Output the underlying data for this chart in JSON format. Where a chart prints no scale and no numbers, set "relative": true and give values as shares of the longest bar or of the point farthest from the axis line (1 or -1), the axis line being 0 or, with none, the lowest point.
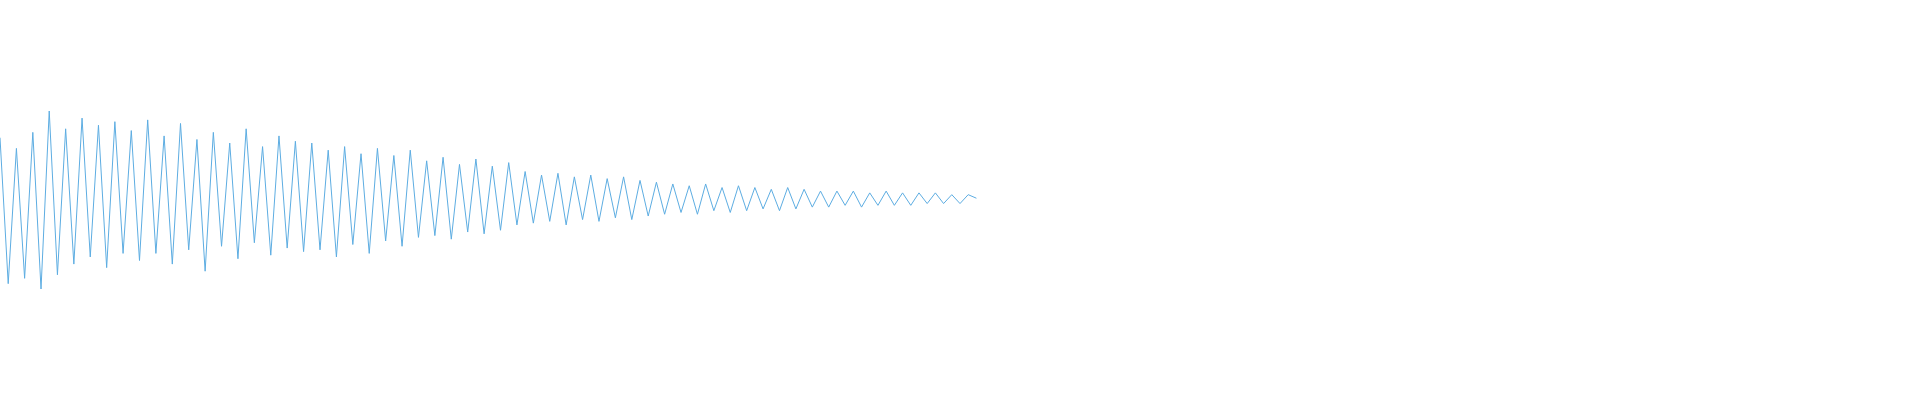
{
  "chart_data": {
    "type": "line",
    "relative": true,
    "categories": [
      null,
      null,
      null,
      null,
      null,
      null,
      null,
      null,
      null,
      null,
      null,
      null,
      null,
      null,
      null,
      null,
      null,
      null,
      null,
      null,
      null,
      null,
      null,
      null,
      null,
      null,
      null,
      null,
      null,
      null,
      null,
      null,
      null,
      null,
      null,
      null,
      null,
      null,
      null,
      null,
      null,
      null,
      null,
      null,
      null,
      null,
      null,
      null,
      null,
      null,
      null,
      null,
      null,
      null,
      null,
      null,
      null,
      null,
      null,
      null,
      null,
      null,
      null,
      null,
      null,
      null,
      null,
      null,
      null,
      null,
      null,
      null,
      null,
      null,
      null,
      null,
      null,
      null,
      null,
      null,
      null,
      null,
      null,
      null,
      null,
      null,
      null,
      null,
      null,
      null,
      null,
      null,
      null,
      null,
      null,
      null,
      null,
      null,
      null,
      null,
      null,
      null,
      null,
      null,
      null,
      null,
      null,
      null,
      null,
      null,
      null,
      null,
      null,
      null,
      null,
      null,
      null,
      null,
      null,
      null,
      null,
      null,
      null,
      null,
      null,
      null,
      null,
      null,
      null,
      null,
      null,
      null,
      null,
      null,
      null,
      null,
      null,
      null,
      null,
      null,
      null,
      null,
      null,
      null,
      null,
      null,
      null,
      null,
      null,
      null,
      null,
      null,
      null,
      null,
      null,
      null,
      null,
      null,
      null,
      null,
      null,
      null,
      null,
      null,
      null,
      null,
      null,
      null,
      null,
      null,
      null,
      null,
      null,
      null,
      null,
      null,
      null,
      null,
      null,
      null,
      null,
      null,
      null,
      null,
      null,
      null,
      null,
      null,
      null,
      null,
      null,
      null,
      null,
      null,
      null,
      null,
      null,
      null,
      null,
      null,
      null,
      null,
      null,
      null,
      null,
      null,
      null,
      null,
      null,
      null,
      null,
      null,
      null,
      null,
      null,
      null,
      null,
      null,
      null,
      null,
      null,
      null,
      null,
      null,
      null,
      null,
      null,
      null,
      null,
      null,
      null,
      null,
      null,
      null,
      null
    ],
    "series": [
      {
        "color": "#5dade2",
        "values": [
          0.85,
          0.03,
          0.79,
          0.06,
          0.88,
          0.0,
          1.0,
          0.08,
          0.9,
          0.14,
          0.96,
          0.18,
          0.92,
          0.12,
          0.94,
          0.2,
          0.89,
          0.16,
          0.95,
          0.2,
          0.86,
          0.14,
          0.93,
          0.22,
          0.84,
          0.1,
          0.88,
          0.24,
          0.82,
          0.17,
          0.9,
          0.26,
          0.8,
          0.19,
          0.86,
          0.23,
          0.83,
          0.21,
          0.82,
          0.22,
          0.78,
          0.18,
          0.8,
          0.25,
          0.76,
          0.2,
          0.79,
          0.27,
          0.75,
          0.24,
          0.78,
          0.29,
          0.72,
          0.3,
          0.74,
          0.28,
          0.7,
          0.32,
          0.73,
          0.31,
          0.69,
          0.33,
          0.71,
          0.36,
          0.66,
          0.37,
          0.64,
          0.38,
          0.65,
          0.36,
          0.63,
          0.39,
          0.64,
          0.38,
          0.62,
          0.4,
          0.63,
          0.39,
          0.61,
          0.41,
          0.6,
          0.42,
          0.59,
          0.43,
          0.58,
          0.42,
          0.59,
          0.44,
          0.57,
          0.43,
          0.58,
          0.44,
          0.57,
          0.45,
          0.56,
          0.44,
          0.57,
          0.45,
          0.56,
          0.46,
          0.55,
          0.46,
          0.55,
          0.47,
          0.55,
          0.46,
          0.54,
          0.47,
          0.55,
          0.47,
          0.54,
          0.47,
          0.54,
          0.48,
          0.54,
          0.48,
          0.53,
          0.48,
          0.53,
          0.51,
          null,
          null,
          null,
          null,
          null,
          null,
          null,
          null,
          null,
          null,
          null,
          null,
          null,
          null,
          null,
          null,
          null,
          null,
          null,
          null,
          null,
          null,
          null,
          null,
          null,
          null,
          null,
          null,
          null,
          null,
          null,
          null,
          null,
          null,
          null,
          null,
          null,
          null,
          null,
          null,
          null,
          null,
          null,
          null,
          null,
          null,
          null,
          null,
          null,
          null,
          null,
          null,
          null,
          null,
          null,
          null,
          null,
          null,
          null,
          null,
          null,
          null,
          null,
          null,
          null,
          null,
          null,
          null,
          null,
          null,
          null,
          null,
          null,
          null,
          null,
          null,
          null,
          null,
          null,
          null,
          null,
          null,
          null,
          null,
          null,
          null,
          null,
          null,
          null,
          null,
          null,
          null,
          null,
          null,
          null,
          null,
          null,
          null,
          null,
          null,
          null,
          null,
          null,
          null,
          null,
          null,
          null,
          null,
          null,
          null,
          null,
          null,
          null,
          null,
          null
        ]
      }
    ]
  }
}
